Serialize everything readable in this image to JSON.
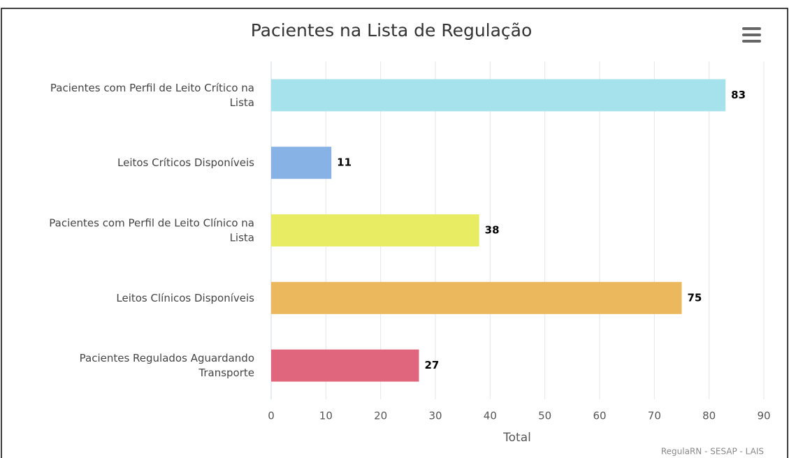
{
  "chart_data": {
    "type": "bar",
    "orientation": "horizontal",
    "title": "Pacientes na Lista de Regulação",
    "categories": [
      "Pacientes com Perfil de Leito Crítico na Lista",
      "Leitos Críticos Disponíveis",
      "Pacientes com Perfil de Leito Clínico na Lista",
      "Leitos Clínicos Disponíveis",
      "Pacientes Regulados Aguardando Transporte"
    ],
    "values": [
      83,
      11,
      38,
      75,
      27
    ],
    "colors": [
      "#a5e2ec",
      "#86b2e6",
      "#e8ec62",
      "#ecb85e",
      "#e0667e"
    ],
    "xlim": [
      0,
      90
    ],
    "xticks": [
      0,
      10,
      20,
      30,
      40,
      50,
      60,
      70,
      80,
      90
    ],
    "xlabel": "Total",
    "grid": true,
    "credits": "RegulaRN - SESAP - LAIS"
  }
}
